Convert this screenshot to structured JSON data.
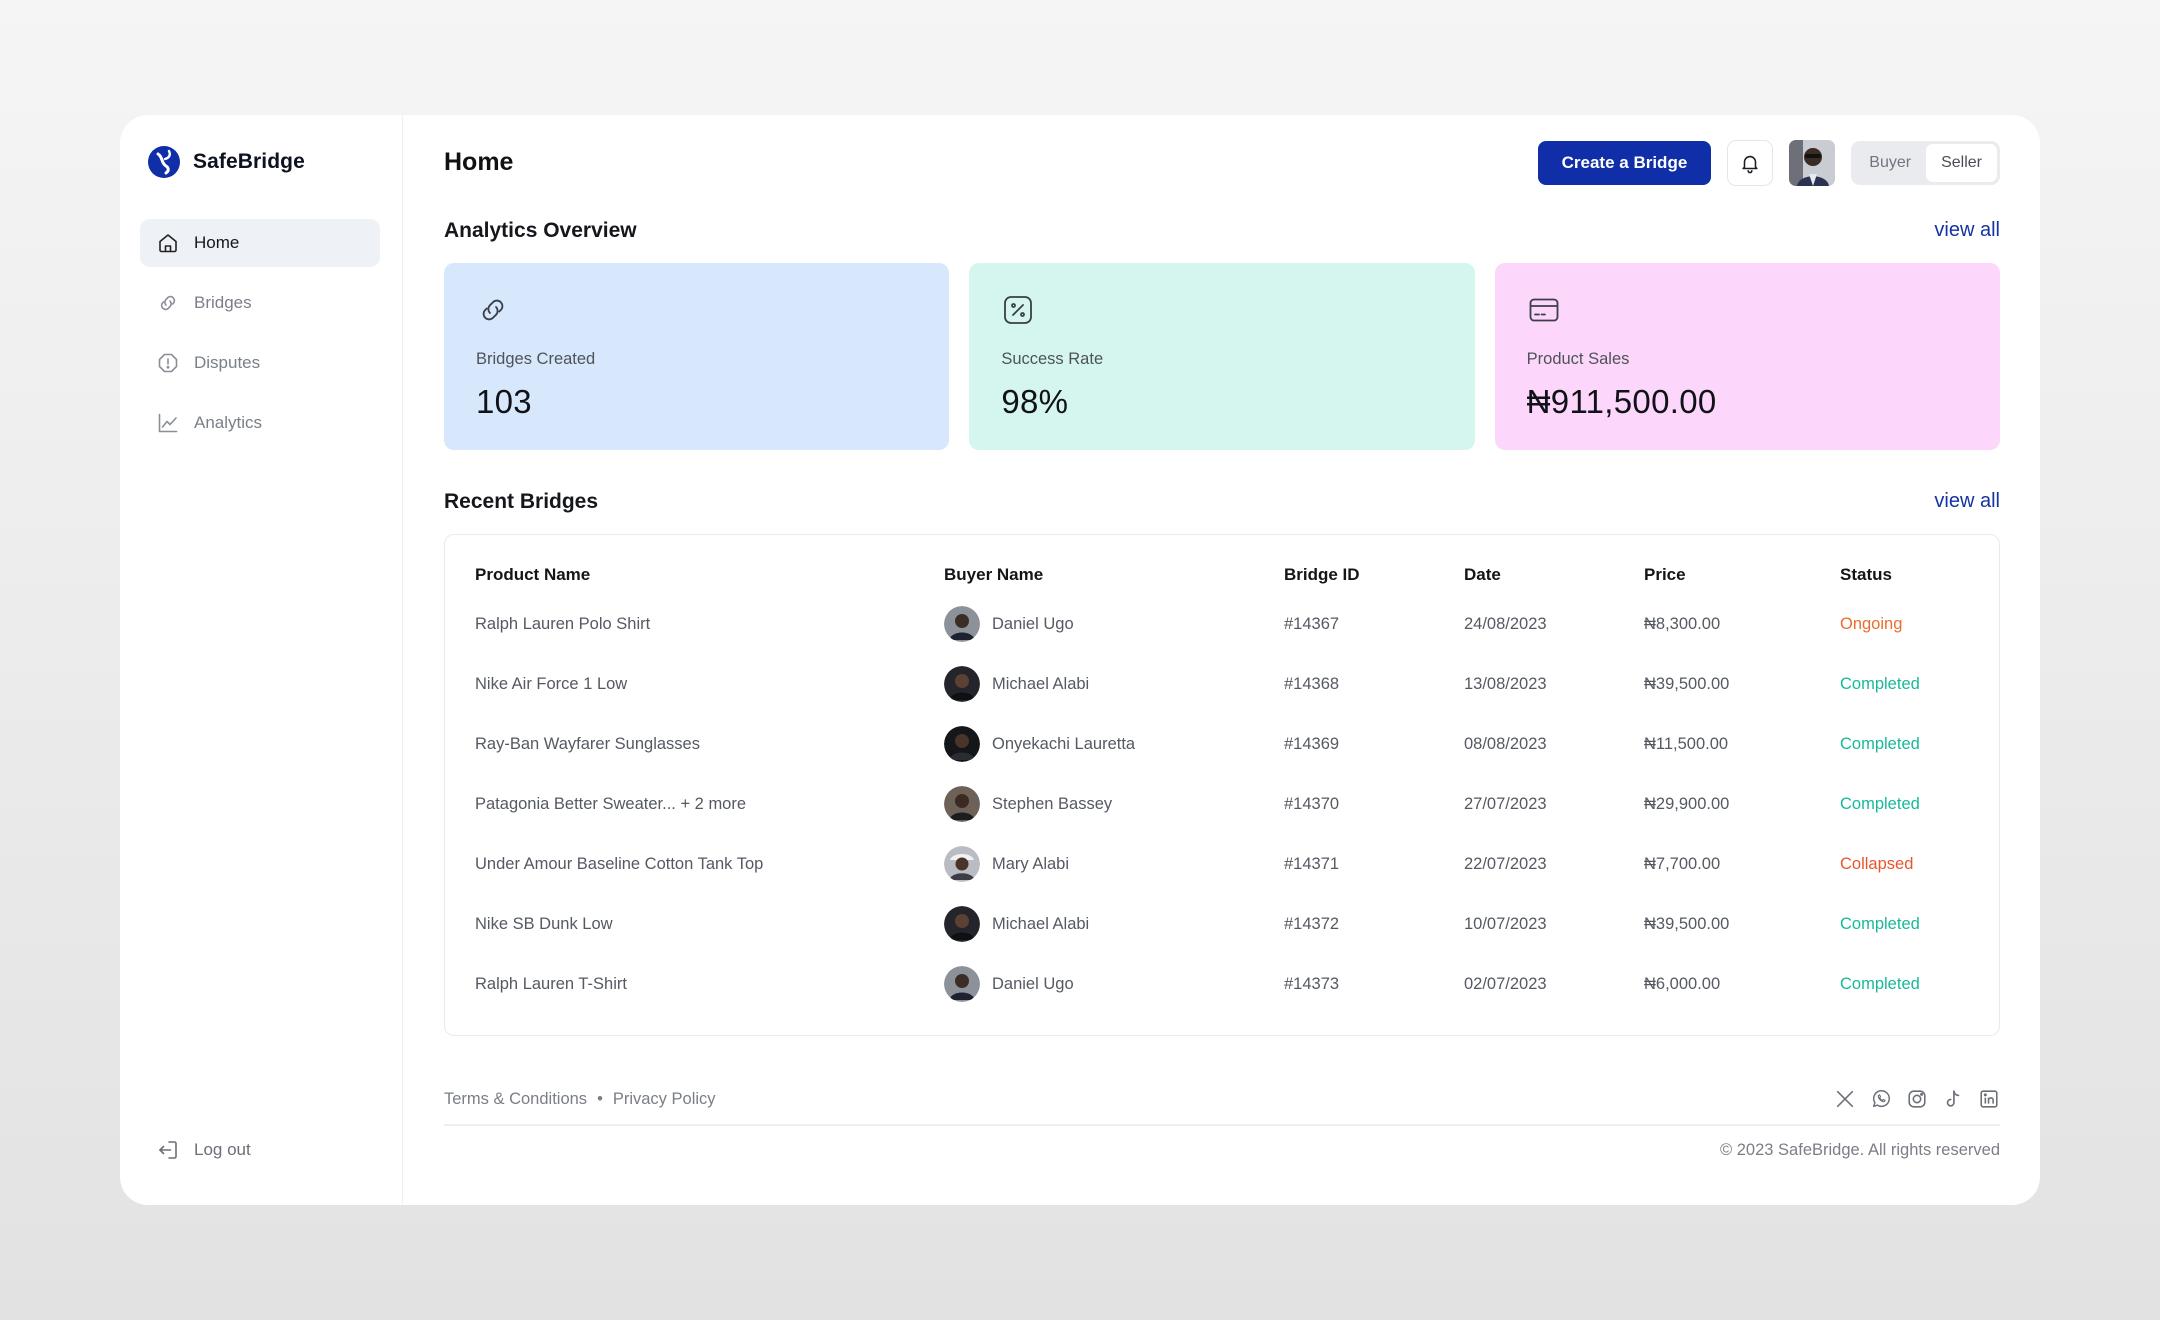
{
  "brand": {
    "name": "SafeBridge"
  },
  "sidebar": {
    "items": [
      {
        "label": "Home",
        "icon": "home-icon",
        "active": true
      },
      {
        "label": "Bridges",
        "icon": "link-icon"
      },
      {
        "label": "Disputes",
        "icon": "alert-icon"
      },
      {
        "label": "Analytics",
        "icon": "chart-icon"
      }
    ],
    "logout_label": "Log out"
  },
  "header": {
    "title": "Home",
    "create_button": "Create a Bridge",
    "role_toggle": {
      "options": [
        "Buyer",
        "Seller"
      ],
      "selected": "Seller"
    }
  },
  "analytics": {
    "title": "Analytics Overview",
    "view_all": "view all",
    "cards": [
      {
        "label": "Bridges Created",
        "value": "103",
        "bg": "#d7e8fd"
      },
      {
        "label": "Success Rate",
        "value": "98%",
        "bg": "#d5f5ef"
      },
      {
        "label": "Product Sales",
        "value": "₦911,500.00",
        "bg": "#fdd7fb"
      }
    ]
  },
  "recent": {
    "title": "Recent Bridges",
    "view_all": "view all",
    "columns": [
      "Product Name",
      "Buyer Name",
      "Bridge ID",
      "Date",
      "Price",
      "Status"
    ],
    "rows": [
      {
        "product": "Ralph Lauren Polo Shirt",
        "buyer": "Daniel Ugo",
        "id": "#14367",
        "date": "24/08/2023",
        "price": "₦8,300.00",
        "status": "Ongoing"
      },
      {
        "product": "Nike Air Force 1 Low",
        "buyer": "Michael Alabi",
        "id": "#14368",
        "date": "13/08/2023",
        "price": "₦39,500.00",
        "status": "Completed"
      },
      {
        "product": "Ray-Ban Wayfarer Sunglasses",
        "buyer": "Onyekachi Lauretta",
        "id": "#14369",
        "date": "08/08/2023",
        "price": "₦11,500.00",
        "status": "Completed"
      },
      {
        "product": "Patagonia Better Sweater... + 2 more",
        "buyer": "Stephen Bassey",
        "id": "#14370",
        "date": "27/07/2023",
        "price": "₦29,900.00",
        "status": "Completed"
      },
      {
        "product": "Under Amour Baseline Cotton Tank Top",
        "buyer": "Mary Alabi",
        "id": "#14371",
        "date": "22/07/2023",
        "price": "₦7,700.00",
        "status": "Collapsed"
      },
      {
        "product": "Nike SB Dunk Low",
        "buyer": "Michael Alabi",
        "id": "#14372",
        "date": "10/07/2023",
        "price": "₦39,500.00",
        "status": "Completed"
      },
      {
        "product": "Ralph Lauren T-Shirt",
        "buyer": "Daniel Ugo",
        "id": "#14373",
        "date": "02/07/2023",
        "price": "₦6,000.00",
        "status": "Completed"
      }
    ]
  },
  "footer": {
    "terms": "Terms & Conditions",
    "separator": "•",
    "privacy": "Privacy Policy",
    "copyright": "© 2023 SafeBridge. All rights reserved",
    "socials": [
      "x-icon",
      "whatsapp-icon",
      "instagram-icon",
      "tiktok-icon",
      "linkedin-icon"
    ]
  },
  "colors": {
    "primary": "#0f2ea8",
    "ongoing": "#ea6d2d",
    "completed": "#17b89a",
    "collapsed": "#e8552d"
  }
}
